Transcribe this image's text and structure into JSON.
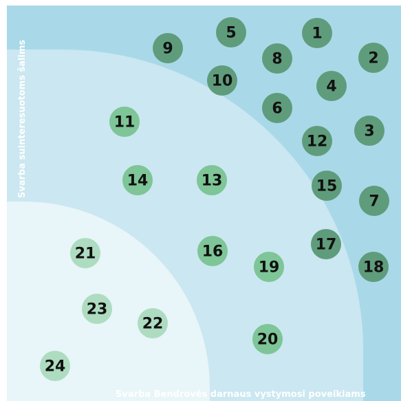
{
  "axes": {
    "y_label": "Svarba suinteresuotoms šalims",
    "x_label": "Svarba Bendrovės darnaus vystymosi poveikiams"
  },
  "nodes": [
    {
      "label": "1"
    },
    {
      "label": "2"
    },
    {
      "label": "3"
    },
    {
      "label": "4"
    },
    {
      "label": "5"
    },
    {
      "label": "6"
    },
    {
      "label": "7"
    },
    {
      "label": "8"
    },
    {
      "label": "9"
    },
    {
      "label": "10"
    },
    {
      "label": "11"
    },
    {
      "label": "12"
    },
    {
      "label": "13"
    },
    {
      "label": "14"
    },
    {
      "label": "15"
    },
    {
      "label": "16"
    },
    {
      "label": "17"
    },
    {
      "label": "18"
    },
    {
      "label": "19"
    },
    {
      "label": "20"
    },
    {
      "label": "21"
    },
    {
      "label": "22"
    },
    {
      "label": "23"
    },
    {
      "label": "24"
    }
  ]
}
